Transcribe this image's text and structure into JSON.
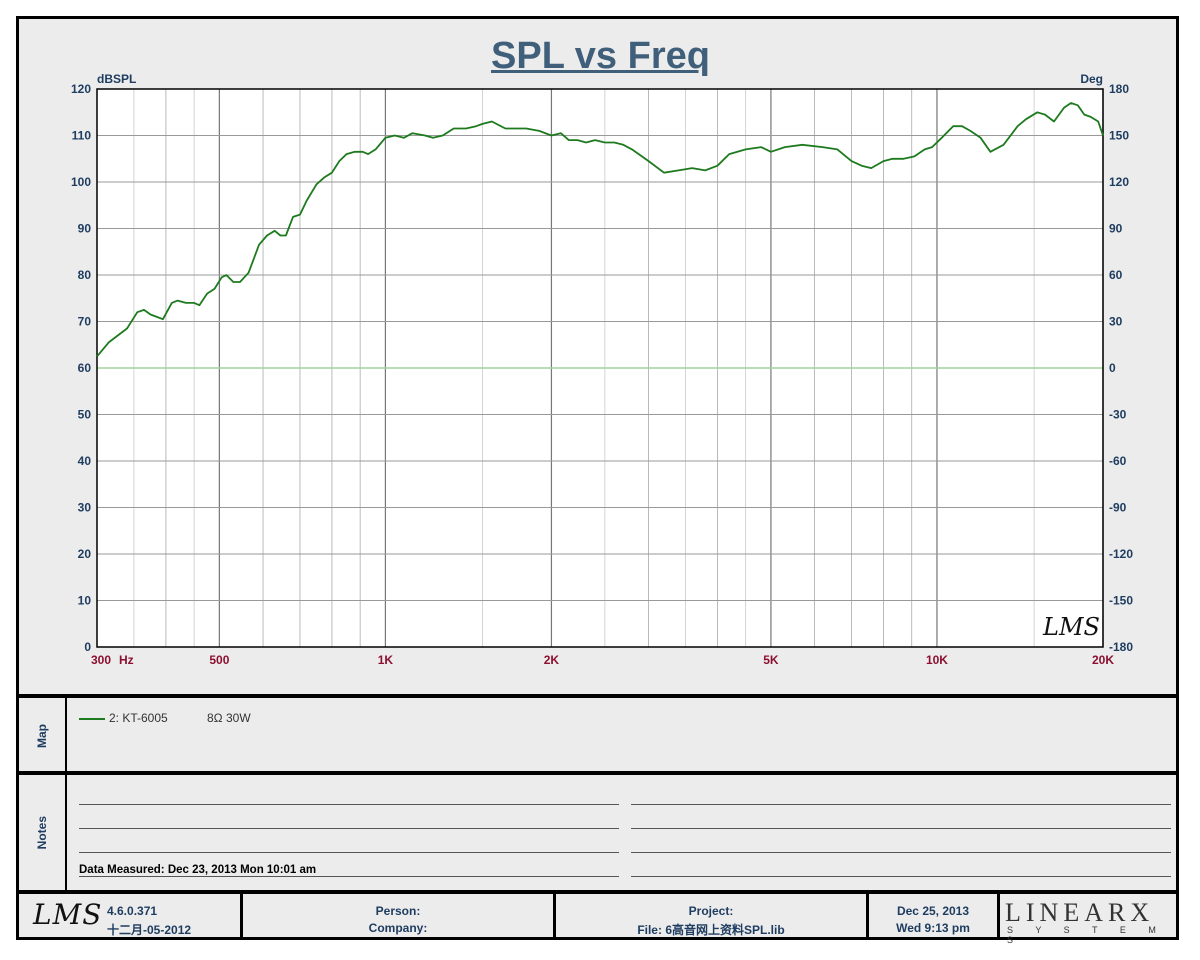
{
  "title": "SPL vs Freq",
  "chart_data": {
    "type": "line",
    "title": "SPL vs Freq",
    "ylabel": "dBSPL",
    "y2label": "Deg",
    "x_unit": "Hz",
    "xscale": "log",
    "xlim": [
      300,
      20000
    ],
    "ylim": [
      0,
      120
    ],
    "y2lim": [
      -180,
      180
    ],
    "y_ticks": [
      0,
      10,
      20,
      30,
      40,
      50,
      60,
      70,
      80,
      90,
      100,
      110,
      120
    ],
    "y2_ticks": [
      -180,
      -150,
      -120,
      -90,
      -60,
      -30,
      0,
      30,
      60,
      90,
      120,
      150,
      180
    ],
    "x_ticks": [
      {
        "value": 300,
        "label": "300"
      },
      {
        "value": 500,
        "label": "500"
      },
      {
        "value": 1000,
        "label": "1K"
      },
      {
        "value": 2000,
        "label": "2K"
      },
      {
        "value": 5000,
        "label": "5K"
      },
      {
        "value": 10000,
        "label": "10K"
      },
      {
        "value": 20000,
        "label": "20K"
      }
    ],
    "grid": true,
    "series": [
      {
        "name": "2: KT-6005",
        "color": "#1e7a1e",
        "x": [
          300,
          315,
          340,
          355,
          365,
          375,
          385,
          395,
          410,
          420,
          435,
          450,
          460,
          475,
          490,
          505,
          515,
          530,
          545,
          565,
          590,
          610,
          630,
          645,
          660,
          680,
          700,
          720,
          750,
          775,
          800,
          825,
          850,
          880,
          910,
          930,
          960,
          1000,
          1040,
          1080,
          1120,
          1180,
          1220,
          1270,
          1330,
          1400,
          1460,
          1500,
          1560,
          1650,
          1800,
          1900,
          2000,
          2080,
          2150,
          2230,
          2310,
          2400,
          2500,
          2600,
          2700,
          2800,
          3000,
          3200,
          3400,
          3600,
          3800,
          4000,
          4200,
          4500,
          4800,
          5000,
          5300,
          5700,
          6200,
          6600,
          7000,
          7300,
          7600,
          8000,
          8300,
          8700,
          9100,
          9500,
          9800,
          10200,
          10700,
          11100,
          11500,
          12000,
          12500,
          13200,
          14000,
          14500,
          15200,
          15700,
          16300,
          17000,
          17500,
          18000,
          18500,
          19000,
          19600,
          20000
        ],
        "values": [
          62.5,
          65.5,
          68.5,
          72,
          72.5,
          71.5,
          71,
          70.5,
          74,
          74.5,
          74,
          74,
          73.5,
          76,
          77,
          79.5,
          80,
          78.5,
          78.5,
          80.5,
          86.5,
          88.5,
          89.5,
          88.5,
          88.5,
          92.5,
          93,
          96,
          99.5,
          101,
          102,
          104.5,
          106,
          106.5,
          106.5,
          106,
          107,
          109.5,
          110,
          109.5,
          110.5,
          110,
          109.5,
          110,
          111.5,
          111.5,
          112,
          112.5,
          113,
          111.5,
          111.5,
          111,
          110,
          110.5,
          109,
          109,
          108.5,
          109,
          108.5,
          108.5,
          108,
          107,
          104.5,
          102,
          102.5,
          103,
          102.5,
          103.5,
          106,
          107,
          107.5,
          106.5,
          107.5,
          108,
          107.5,
          107,
          104.5,
          103.5,
          103,
          104.5,
          105,
          105,
          105.5,
          107,
          107.5,
          109.5,
          112,
          112,
          111,
          109.5,
          106.5,
          108,
          112,
          113.5,
          115,
          114.5,
          113,
          116,
          117,
          116.5,
          114.5,
          114,
          113,
          110
        ]
      }
    ]
  },
  "map": {
    "label": "Map",
    "legend": [
      {
        "name": "2: KT-6005",
        "desc": "8Ω  30W"
      }
    ]
  },
  "notes": {
    "label": "Notes",
    "measured": "Data Measured: Dec 23, 2013  Mon 10:01 am"
  },
  "watermark": "LMS",
  "footer": {
    "logo": "LMS",
    "version": "4.6.0.371",
    "version_date": "十二月-05-2012",
    "person_label": "Person:",
    "company_label": "Company:",
    "project_label": "Project:",
    "file_label": "File: 6高音网上资料SPL.lib",
    "date": "Dec 25, 2013",
    "time": "Wed  9:13 pm",
    "brand": "LINEARX",
    "brand_sub": "S Y S T E M S"
  }
}
